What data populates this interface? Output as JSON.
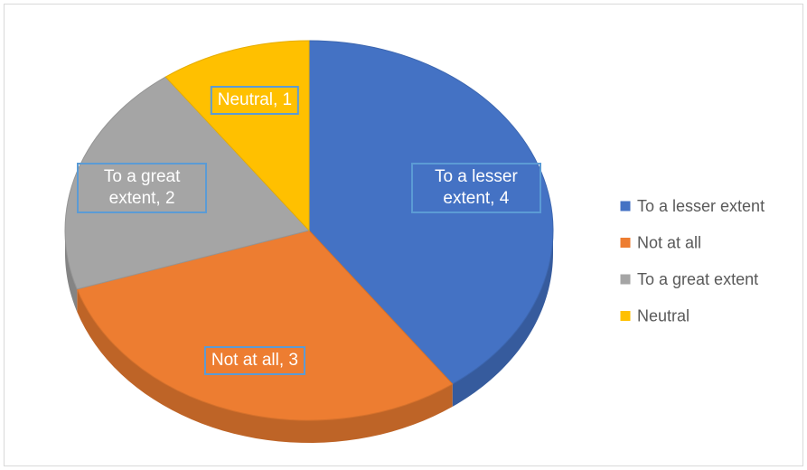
{
  "chart_data": {
    "type": "pie3d",
    "categories": [
      "To a lesser extent",
      "Not at all",
      "To a great extent",
      "Neutral"
    ],
    "values": [
      4,
      3,
      2,
      1
    ],
    "value_labels": [
      "To a lesser extent, 4",
      "Not at all, 3",
      "To a great extent, 2",
      "Neutral, 1"
    ],
    "colors": [
      "#4472c4",
      "#ed7d31",
      "#a5a5a5",
      "#ffc000"
    ],
    "legend": "right"
  }
}
